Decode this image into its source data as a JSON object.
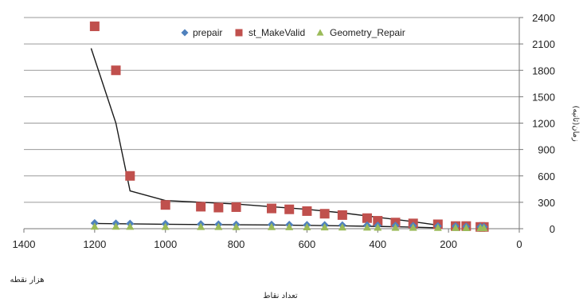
{
  "chart_data": {
    "type": "scatter",
    "x_ticks": [
      1400,
      1200,
      1000,
      800,
      600,
      400,
      200,
      0
    ],
    "y_ticks": [
      0,
      300,
      600,
      900,
      1200,
      1500,
      1800,
      2100,
      2400
    ],
    "xlim": [
      0,
      1400
    ],
    "x_reversed": true,
    "ylim": [
      0,
      2400
    ],
    "y_axis_side": "right",
    "grid": "horizontal",
    "legend_position": "top",
    "xlabel": "تعداد نقاط",
    "x_unit_label": "هزار نقطه",
    "ylabel": "زمان(ثانیه)",
    "series": [
      {
        "name": "prepair",
        "marker": "diamond",
        "color": "#4f81bd",
        "x": [
          1200,
          1140,
          1100,
          1000,
          900,
          850,
          800,
          700,
          650,
          600,
          550,
          500,
          430,
          400,
          350,
          300,
          230,
          180,
          150,
          110,
          100
        ],
        "y": [
          65,
          60,
          58,
          55,
          52,
          50,
          48,
          46,
          45,
          43,
          42,
          40,
          38,
          36,
          35,
          33,
          30,
          28,
          25,
          20,
          20
        ]
      },
      {
        "name": "st_MakeValid",
        "marker": "square",
        "color": "#c0504d",
        "x": [
          1200,
          1140,
          1100,
          1000,
          900,
          850,
          800,
          700,
          650,
          600,
          550,
          500,
          430,
          400,
          350,
          300,
          230,
          180,
          150,
          110,
          100
        ],
        "y": [
          2300,
          1800,
          600,
          270,
          250,
          240,
          245,
          230,
          220,
          200,
          170,
          155,
          120,
          90,
          70,
          60,
          50,
          30,
          30,
          20,
          20
        ]
      },
      {
        "name": "Geometry_Repair",
        "marker": "triangle",
        "color": "#9bbb59",
        "x": [
          1200,
          1140,
          1100,
          1000,
          900,
          850,
          800,
          700,
          650,
          600,
          550,
          500,
          430,
          400,
          350,
          300,
          230,
          180,
          150,
          110,
          100
        ],
        "y": [
          25,
          25,
          24,
          23,
          22,
          21,
          20,
          20,
          19,
          18,
          17,
          16,
          15,
          14,
          13,
          12,
          11,
          10,
          9,
          8,
          8
        ]
      }
    ],
    "trendlines": [
      {
        "series": "st_MakeValid",
        "x": [
          1210,
          1140,
          1100,
          1000,
          900,
          800,
          700,
          600,
          500,
          400,
          300,
          230
        ],
        "y": [
          2050,
          1200,
          430,
          320,
          300,
          280,
          250,
          220,
          180,
          130,
          80,
          40
        ]
      },
      {
        "series": "prepair",
        "x": [
          1210,
          1100,
          1000,
          900,
          800,
          700,
          600,
          500,
          400,
          300,
          230
        ],
        "y": [
          60,
          55,
          50,
          47,
          45,
          42,
          38,
          32,
          26,
          18,
          10
        ]
      }
    ]
  }
}
